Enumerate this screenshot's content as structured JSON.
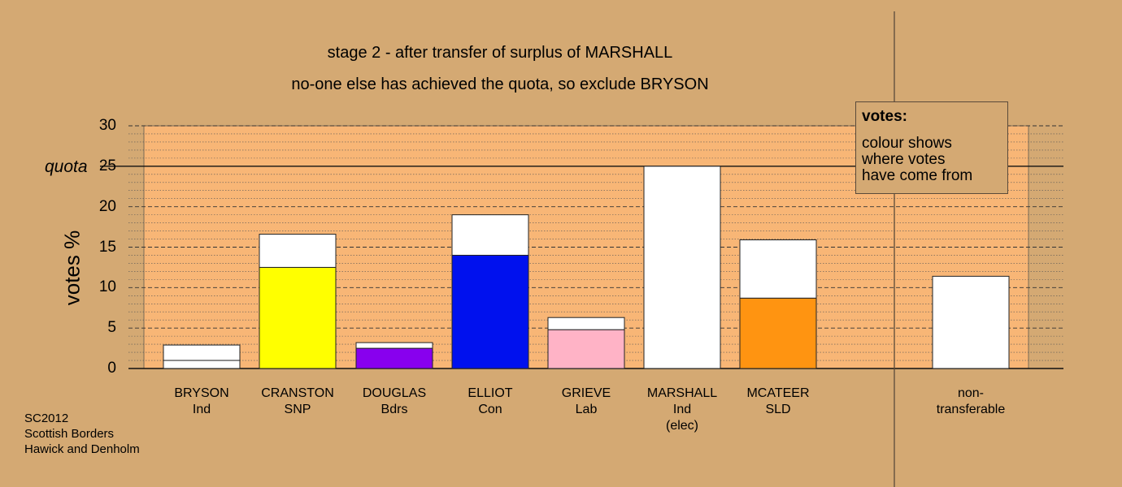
{
  "titles": {
    "line1": "stage 2 - after transfer of surplus of MARSHALL",
    "line2": "no-one else has achieved the quota, so exclude BRYSON"
  },
  "footer": {
    "line1": "SC2012",
    "line2": "Scottish Borders",
    "line3": "Hawick and Denholm"
  },
  "legend": {
    "title": "votes:",
    "line1": "colour shows",
    "line2": "where votes",
    "line3": "have come from"
  },
  "quota_label": "quota",
  "colors": {
    "background": "#d4a973",
    "plot_area": "#f8b676",
    "transferred": "#ffffff"
  },
  "chart_data": {
    "type": "bar",
    "stacked": true,
    "ylabel": "votes %",
    "ylim": [
      0,
      30
    ],
    "yticks": [
      0,
      5,
      10,
      15,
      20,
      25,
      30
    ],
    "quota": 25,
    "grid": "dashed at 5, dotted at 1",
    "legend_position": "top-right",
    "categories": [
      {
        "name": "BRYSON",
        "party": "Ind",
        "note": "",
        "first_pref": 1.0,
        "transferred": 1.9,
        "color": "#ffffff"
      },
      {
        "name": "CRANSTON",
        "party": "SNP",
        "note": "",
        "first_pref": 12.5,
        "transferred": 4.1,
        "color": "#ffff00"
      },
      {
        "name": "DOUGLAS",
        "party": "Bdrs",
        "note": "",
        "first_pref": 2.5,
        "transferred": 0.7,
        "color": "#8800ee"
      },
      {
        "name": "ELLIOT",
        "party": "Con",
        "note": "",
        "first_pref": 14.0,
        "transferred": 5.0,
        "color": "#0011ee"
      },
      {
        "name": "GRIEVE",
        "party": "Lab",
        "note": "",
        "first_pref": 4.8,
        "transferred": 1.5,
        "color": "#ffb3c6"
      },
      {
        "name": "MARSHALL",
        "party": "Ind",
        "note": "(elec)",
        "first_pref": 25.0,
        "transferred": 0,
        "color": "#ffffff"
      },
      {
        "name": "MCATEER",
        "party": "SLD",
        "note": "",
        "first_pref": 8.7,
        "transferred": 7.2,
        "color": "#ff9411"
      }
    ],
    "non_transferable": {
      "line1": "non-",
      "line2": "transferable",
      "value": 11.4
    }
  }
}
